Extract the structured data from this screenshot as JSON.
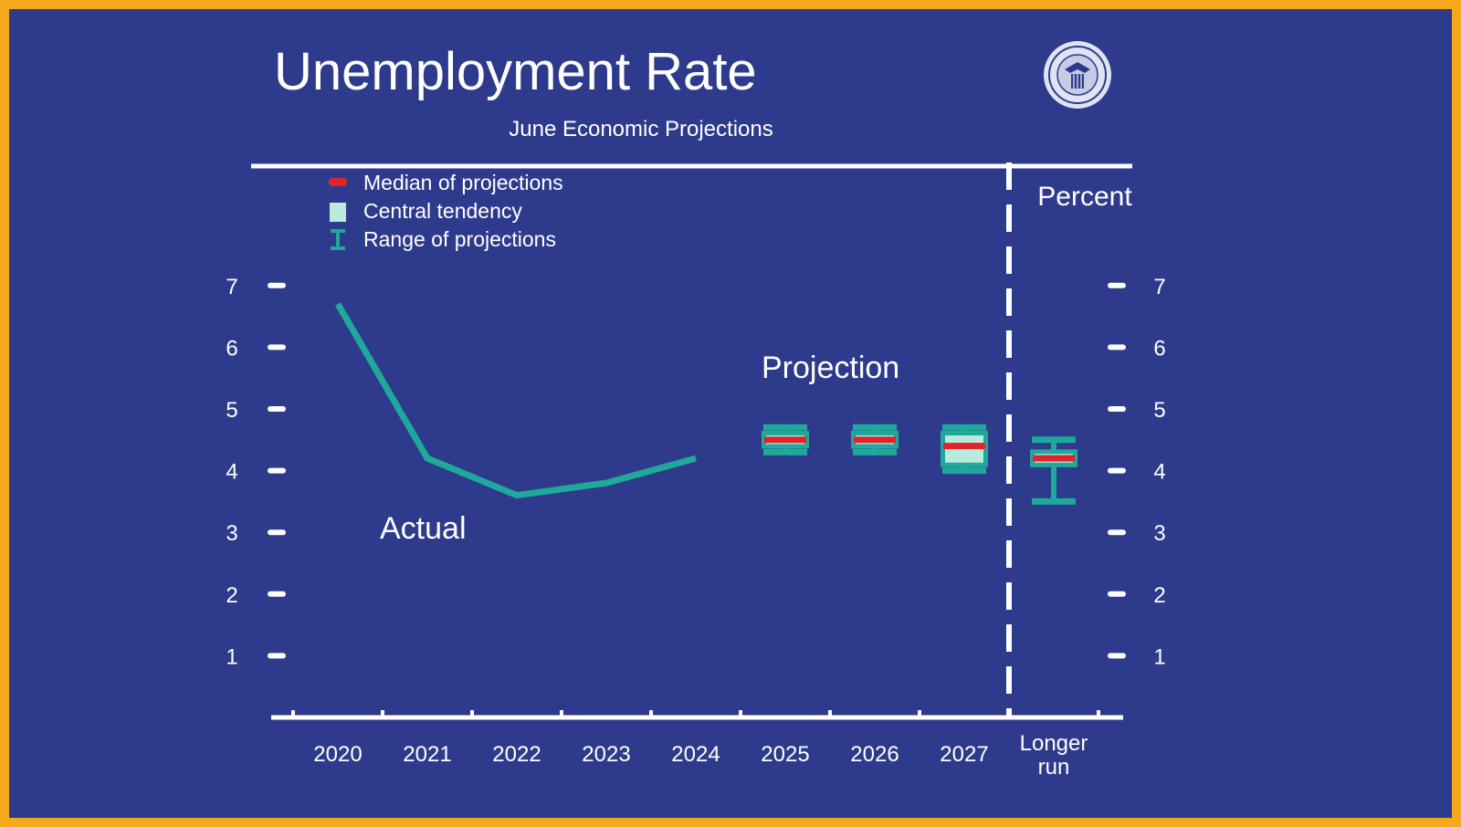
{
  "colors": {
    "background": "#2e3b8c",
    "frame": "#f5a91a",
    "line": "#1fa99a",
    "range": "#1fa99a",
    "central": "#b9ebdd",
    "median": "#e0242c",
    "text": "#ffffff"
  },
  "logo": {
    "icon": "federal-reserve-seal-icon"
  },
  "chart_data": {
    "type": "line",
    "title": "Unemployment Rate",
    "subtitle": "June Economic Projections",
    "unit_label": "Percent",
    "categories": [
      "2020",
      "2021",
      "2022",
      "2023",
      "2024",
      "2025",
      "2026",
      "2027",
      "Longer run"
    ],
    "longer_run_label_lines": [
      "Longer",
      "run"
    ],
    "ylim": [
      0,
      7
    ],
    "yticks": [
      1,
      2,
      3,
      4,
      5,
      6,
      7
    ],
    "grid": false,
    "legend": {
      "position": "top-left",
      "entries": [
        "Median of projections",
        "Central tendency",
        "Range of projections"
      ]
    },
    "annotations": [
      "Actual",
      "Projection"
    ],
    "actual": {
      "name": "Actual",
      "x": [
        "2020",
        "2021",
        "2022",
        "2023",
        "2024"
      ],
      "values": [
        6.7,
        4.2,
        3.6,
        3.8,
        4.2
      ]
    },
    "projections": [
      {
        "x": "2025",
        "median": 4.5,
        "central": [
          4.4,
          4.6
        ],
        "range": [
          4.3,
          4.7
        ]
      },
      {
        "x": "2026",
        "median": 4.5,
        "central": [
          4.4,
          4.6
        ],
        "range": [
          4.3,
          4.7
        ]
      },
      {
        "x": "2027",
        "median": 4.4,
        "central": [
          4.1,
          4.6
        ],
        "range": [
          4.0,
          4.7
        ]
      },
      {
        "x": "Longer run",
        "median": 4.2,
        "central": [
          4.1,
          4.3
        ],
        "range": [
          3.5,
          4.5
        ]
      }
    ]
  }
}
